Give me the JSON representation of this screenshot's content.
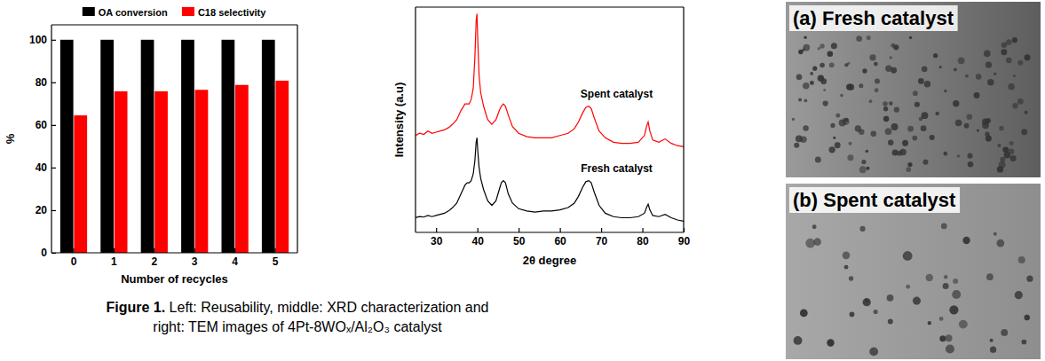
{
  "chart_data": [
    {
      "type": "bar",
      "categories": [
        "0",
        "1",
        "2",
        "3",
        "4",
        "5"
      ],
      "x_label": "Number of recycles",
      "y_label": "%",
      "ylim": [
        0,
        107
      ],
      "yticks": [
        0,
        20,
        40,
        60,
        80,
        100
      ],
      "legend": "top",
      "series": [
        {
          "name": "OA conversion",
          "color": "#000000",
          "values": [
            100,
            100,
            100,
            100,
            100,
            100
          ]
        },
        {
          "name": "C18 selectivity",
          "color": "#ff0000",
          "values": [
            64.5,
            75.8,
            75.8,
            76.5,
            78.8,
            80.8
          ]
        }
      ]
    },
    {
      "type": "line",
      "x_label": "2θ degree",
      "y_label": "Intensity (a.u)",
      "xlim": [
        25,
        90
      ],
      "xticks": [
        30,
        40,
        50,
        60,
        70,
        80,
        90
      ],
      "ylim": [
        0,
        100
      ],
      "tick_labels": "x",
      "x": [
        25,
        26,
        27,
        28,
        29,
        30,
        31,
        32,
        33,
        34,
        35,
        36,
        37,
        37.5,
        38,
        38.5,
        39,
        39.4,
        39.7,
        39.9,
        40.1,
        40.4,
        40.8,
        41.5,
        42.5,
        43.5,
        44.5,
        45.3,
        45.8,
        46.3,
        46.8,
        47.5,
        48.5,
        50,
        52,
        54,
        56,
        58,
        60,
        62,
        63.5,
        64.5,
        65.5,
        66.3,
        67,
        67.6,
        68.3,
        69.5,
        71,
        73,
        75,
        77,
        79,
        80.5,
        81,
        81.4,
        81.8,
        82.5,
        84,
        85.5,
        87,
        88.5,
        90
      ],
      "series": [
        {
          "name": "Spent catalyst",
          "color": "#ff0000",
          "values": [
            43,
            44,
            43.5,
            45,
            44,
            44.5,
            45,
            45.5,
            46.5,
            48,
            50,
            54,
            57,
            57,
            57,
            59,
            64,
            78,
            94,
            97,
            85,
            70,
            62,
            56,
            50,
            48,
            50,
            54,
            56,
            57,
            56,
            52,
            47,
            44,
            42.5,
            42,
            42,
            42,
            43,
            44,
            46,
            49,
            53,
            55.5,
            56,
            55,
            51,
            45,
            42,
            40,
            39.5,
            39.5,
            40,
            43,
            47,
            49,
            45,
            41,
            40,
            41.5,
            39.5,
            38.5,
            38
          ]
        },
        {
          "name": "Fresh catalyst",
          "color": "#000000",
          "values": [
            6.5,
            7,
            6.8,
            7.5,
            7,
            7.5,
            8,
            8.5,
            9.5,
            11,
            13,
            17,
            21,
            22,
            22,
            23,
            26,
            32,
            40,
            42,
            36,
            29,
            24,
            19,
            14,
            12,
            14,
            19,
            22,
            23,
            22,
            17,
            13,
            10.5,
            9.5,
            9,
            9.5,
            9.5,
            10,
            11,
            13,
            16,
            20,
            22.5,
            23,
            22,
            18,
            12,
            8.5,
            7,
            6.5,
            6.5,
            7,
            8.5,
            11,
            12.5,
            10,
            7.5,
            7,
            8,
            6.5,
            5.5,
            5
          ]
        }
      ]
    }
  ],
  "images": [
    {
      "label": "(a) Fresh catalyst"
    },
    {
      "label": "(b) Spent catalyst"
    }
  ],
  "caption": {
    "label": "Figure 1.",
    "lines": [
      "Left: Reusability, middle: XRD characterization and",
      "right: TEM images of 4Pt-8WOₓ/Al₂O₃ catalyst"
    ]
  }
}
